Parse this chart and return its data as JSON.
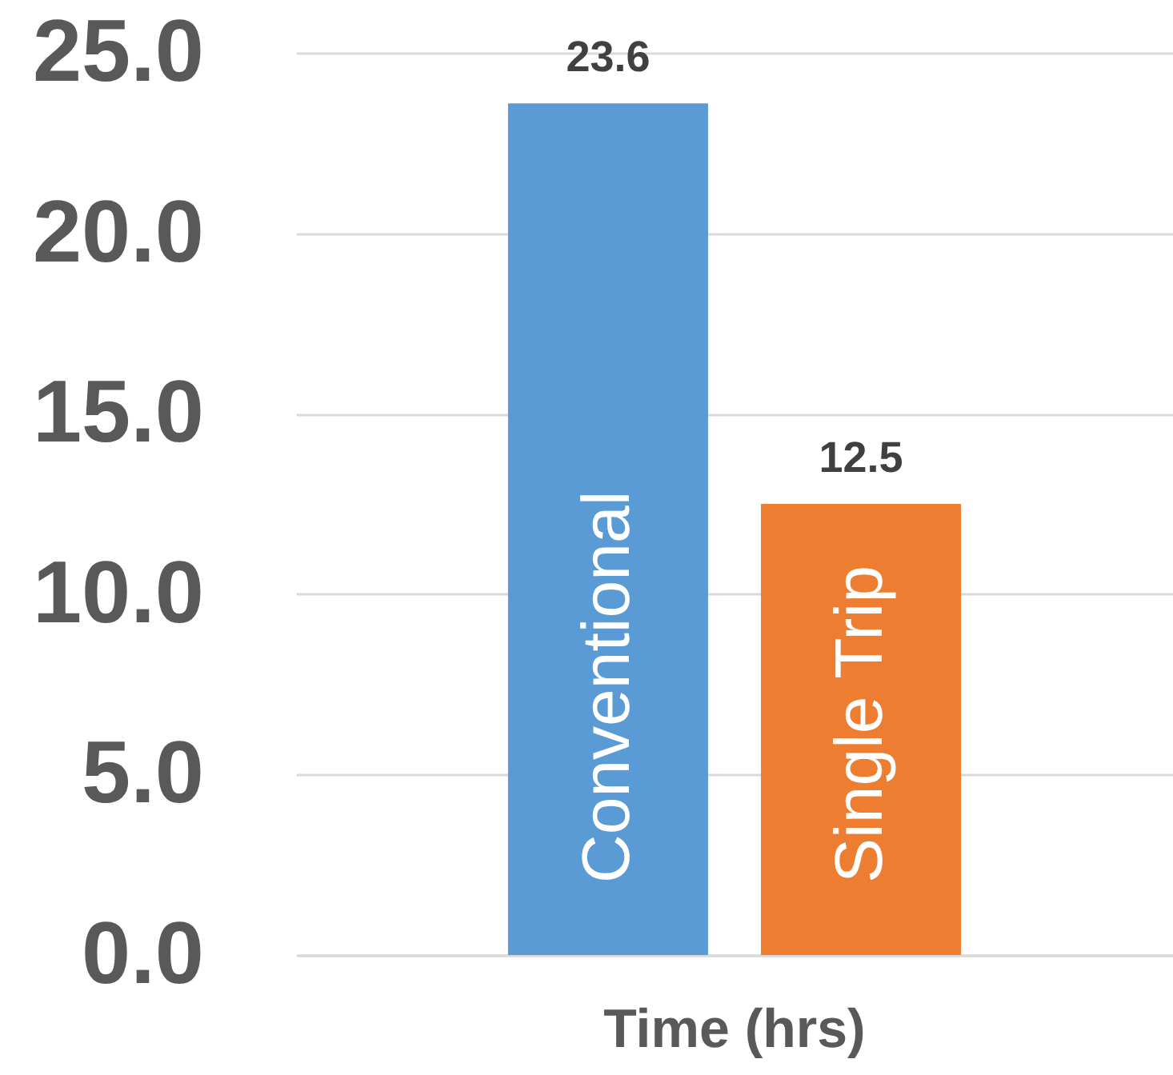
{
  "chart_data": {
    "type": "bar",
    "categories": [
      "Time (hrs)"
    ],
    "series": [
      {
        "name": "Conventional",
        "color": "#5b9bd5",
        "values": [
          23.6
        ]
      },
      {
        "name": "Single Trip",
        "color": "#ed7d31",
        "values": [
          12.5
        ]
      }
    ],
    "ylim": [
      0,
      25
    ],
    "yticks": [
      {
        "value": 0,
        "label": "0.0"
      },
      {
        "value": 5,
        "label": "5.0"
      },
      {
        "value": 10,
        "label": "10.0"
      },
      {
        "value": 15,
        "label": "15.0"
      },
      {
        "value": 20,
        "label": "20.0"
      },
      {
        "value": 25,
        "label": "25.0"
      }
    ],
    "grid": "y",
    "data_labels": true
  }
}
